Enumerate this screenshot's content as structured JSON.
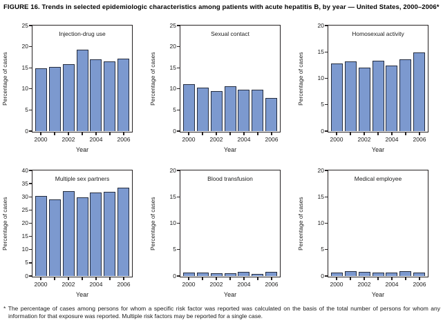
{
  "figure": {
    "title": "FIGURE 16. Trends in selected epidemiologic characteristics among patients with acute hepatitis B, by year — United States, 2000–2006*",
    "footnote": "* The percentage of cases among persons for whom a specific risk factor was reported was calculated on the basis of the total number of persons for whom any information for that exposure was reported. Multiple risk factors may be reported for a single case."
  },
  "colors": {
    "bar_fill": "#7C99CF",
    "bar_border": "#242c3e",
    "axis": "#231f20",
    "text": "#1a1a1a",
    "background": "#ffffff"
  },
  "chart_data": [
    {
      "type": "bar",
      "title": "Injection-drug use",
      "categories": [
        "2000",
        "2001",
        "2002",
        "2003",
        "2004",
        "2005",
        "2006"
      ],
      "values": [
        14.8,
        15.2,
        15.7,
        19.2,
        16.9,
        16.5,
        17.1
      ],
      "xlabel": "Year",
      "ylabel": "Percentage of cases",
      "ylim": [
        0,
        25
      ],
      "ytick_step": 5,
      "xtick_labels_shown": [
        "2000",
        "2002",
        "2004",
        "2006"
      ],
      "grid": false,
      "legend": "none"
    },
    {
      "type": "bar",
      "title": "Sexual contact",
      "categories": [
        "2000",
        "2001",
        "2002",
        "2003",
        "2004",
        "2005",
        "2006"
      ],
      "values": [
        11.0,
        10.2,
        9.4,
        10.6,
        9.7,
        9.7,
        7.7
      ],
      "xlabel": "Year",
      "ylabel": "Percentage of cases",
      "ylim": [
        0,
        25
      ],
      "ytick_step": 5,
      "xtick_labels_shown": [
        "2000",
        "2002",
        "2004",
        "2006"
      ],
      "grid": false,
      "legend": "none"
    },
    {
      "type": "bar",
      "title": "Homosexual activity",
      "categories": [
        "2000",
        "2001",
        "2002",
        "2003",
        "2004",
        "2005",
        "2006"
      ],
      "values": [
        12.8,
        13.2,
        12.0,
        13.3,
        12.4,
        13.6,
        14.8
      ],
      "xlabel": "Year",
      "ylabel": "Percentage of cases",
      "ylim": [
        0,
        20
      ],
      "ytick_step": 5,
      "xtick_labels_shown": [
        "2000",
        "2002",
        "2004",
        "2006"
      ],
      "grid": false,
      "legend": "none"
    },
    {
      "type": "bar",
      "title": "Multiple sex partners",
      "categories": [
        "2000",
        "2001",
        "2002",
        "2003",
        "2004",
        "2005",
        "2006"
      ],
      "values": [
        30.2,
        29.0,
        32.0,
        29.6,
        31.4,
        31.8,
        33.4
      ],
      "xlabel": "Year",
      "ylabel": "Percentage of cases",
      "ylim": [
        0,
        40
      ],
      "ytick_step": 5,
      "xtick_labels_shown": [
        "2000",
        "2002",
        "2004",
        "2006"
      ],
      "grid": false,
      "legend": "none"
    },
    {
      "type": "bar",
      "title": "Blood transfusion",
      "categories": [
        "2000",
        "2001",
        "2002",
        "2003",
        "2004",
        "2005",
        "2006"
      ],
      "values": [
        0.6,
        0.6,
        0.5,
        0.5,
        0.7,
        0.3,
        0.7
      ],
      "xlabel": "Year",
      "ylabel": "Percentage of cases",
      "ylim": [
        0,
        20
      ],
      "ytick_step": 5,
      "xtick_labels_shown": [
        "2000",
        "2002",
        "2004",
        "2006"
      ],
      "grid": false,
      "legend": "none"
    },
    {
      "type": "bar",
      "title": "Medical employee",
      "categories": [
        "2000",
        "2001",
        "2002",
        "2003",
        "2004",
        "2005",
        "2006"
      ],
      "values": [
        0.6,
        0.9,
        0.7,
        0.6,
        0.6,
        0.9,
        0.6
      ],
      "xlabel": "Year",
      "ylabel": "Percentage of cases",
      "ylim": [
        0,
        20
      ],
      "ytick_step": 5,
      "xtick_labels_shown": [
        "2000",
        "2002",
        "2004",
        "2006"
      ],
      "grid": false,
      "legend": "none"
    }
  ]
}
